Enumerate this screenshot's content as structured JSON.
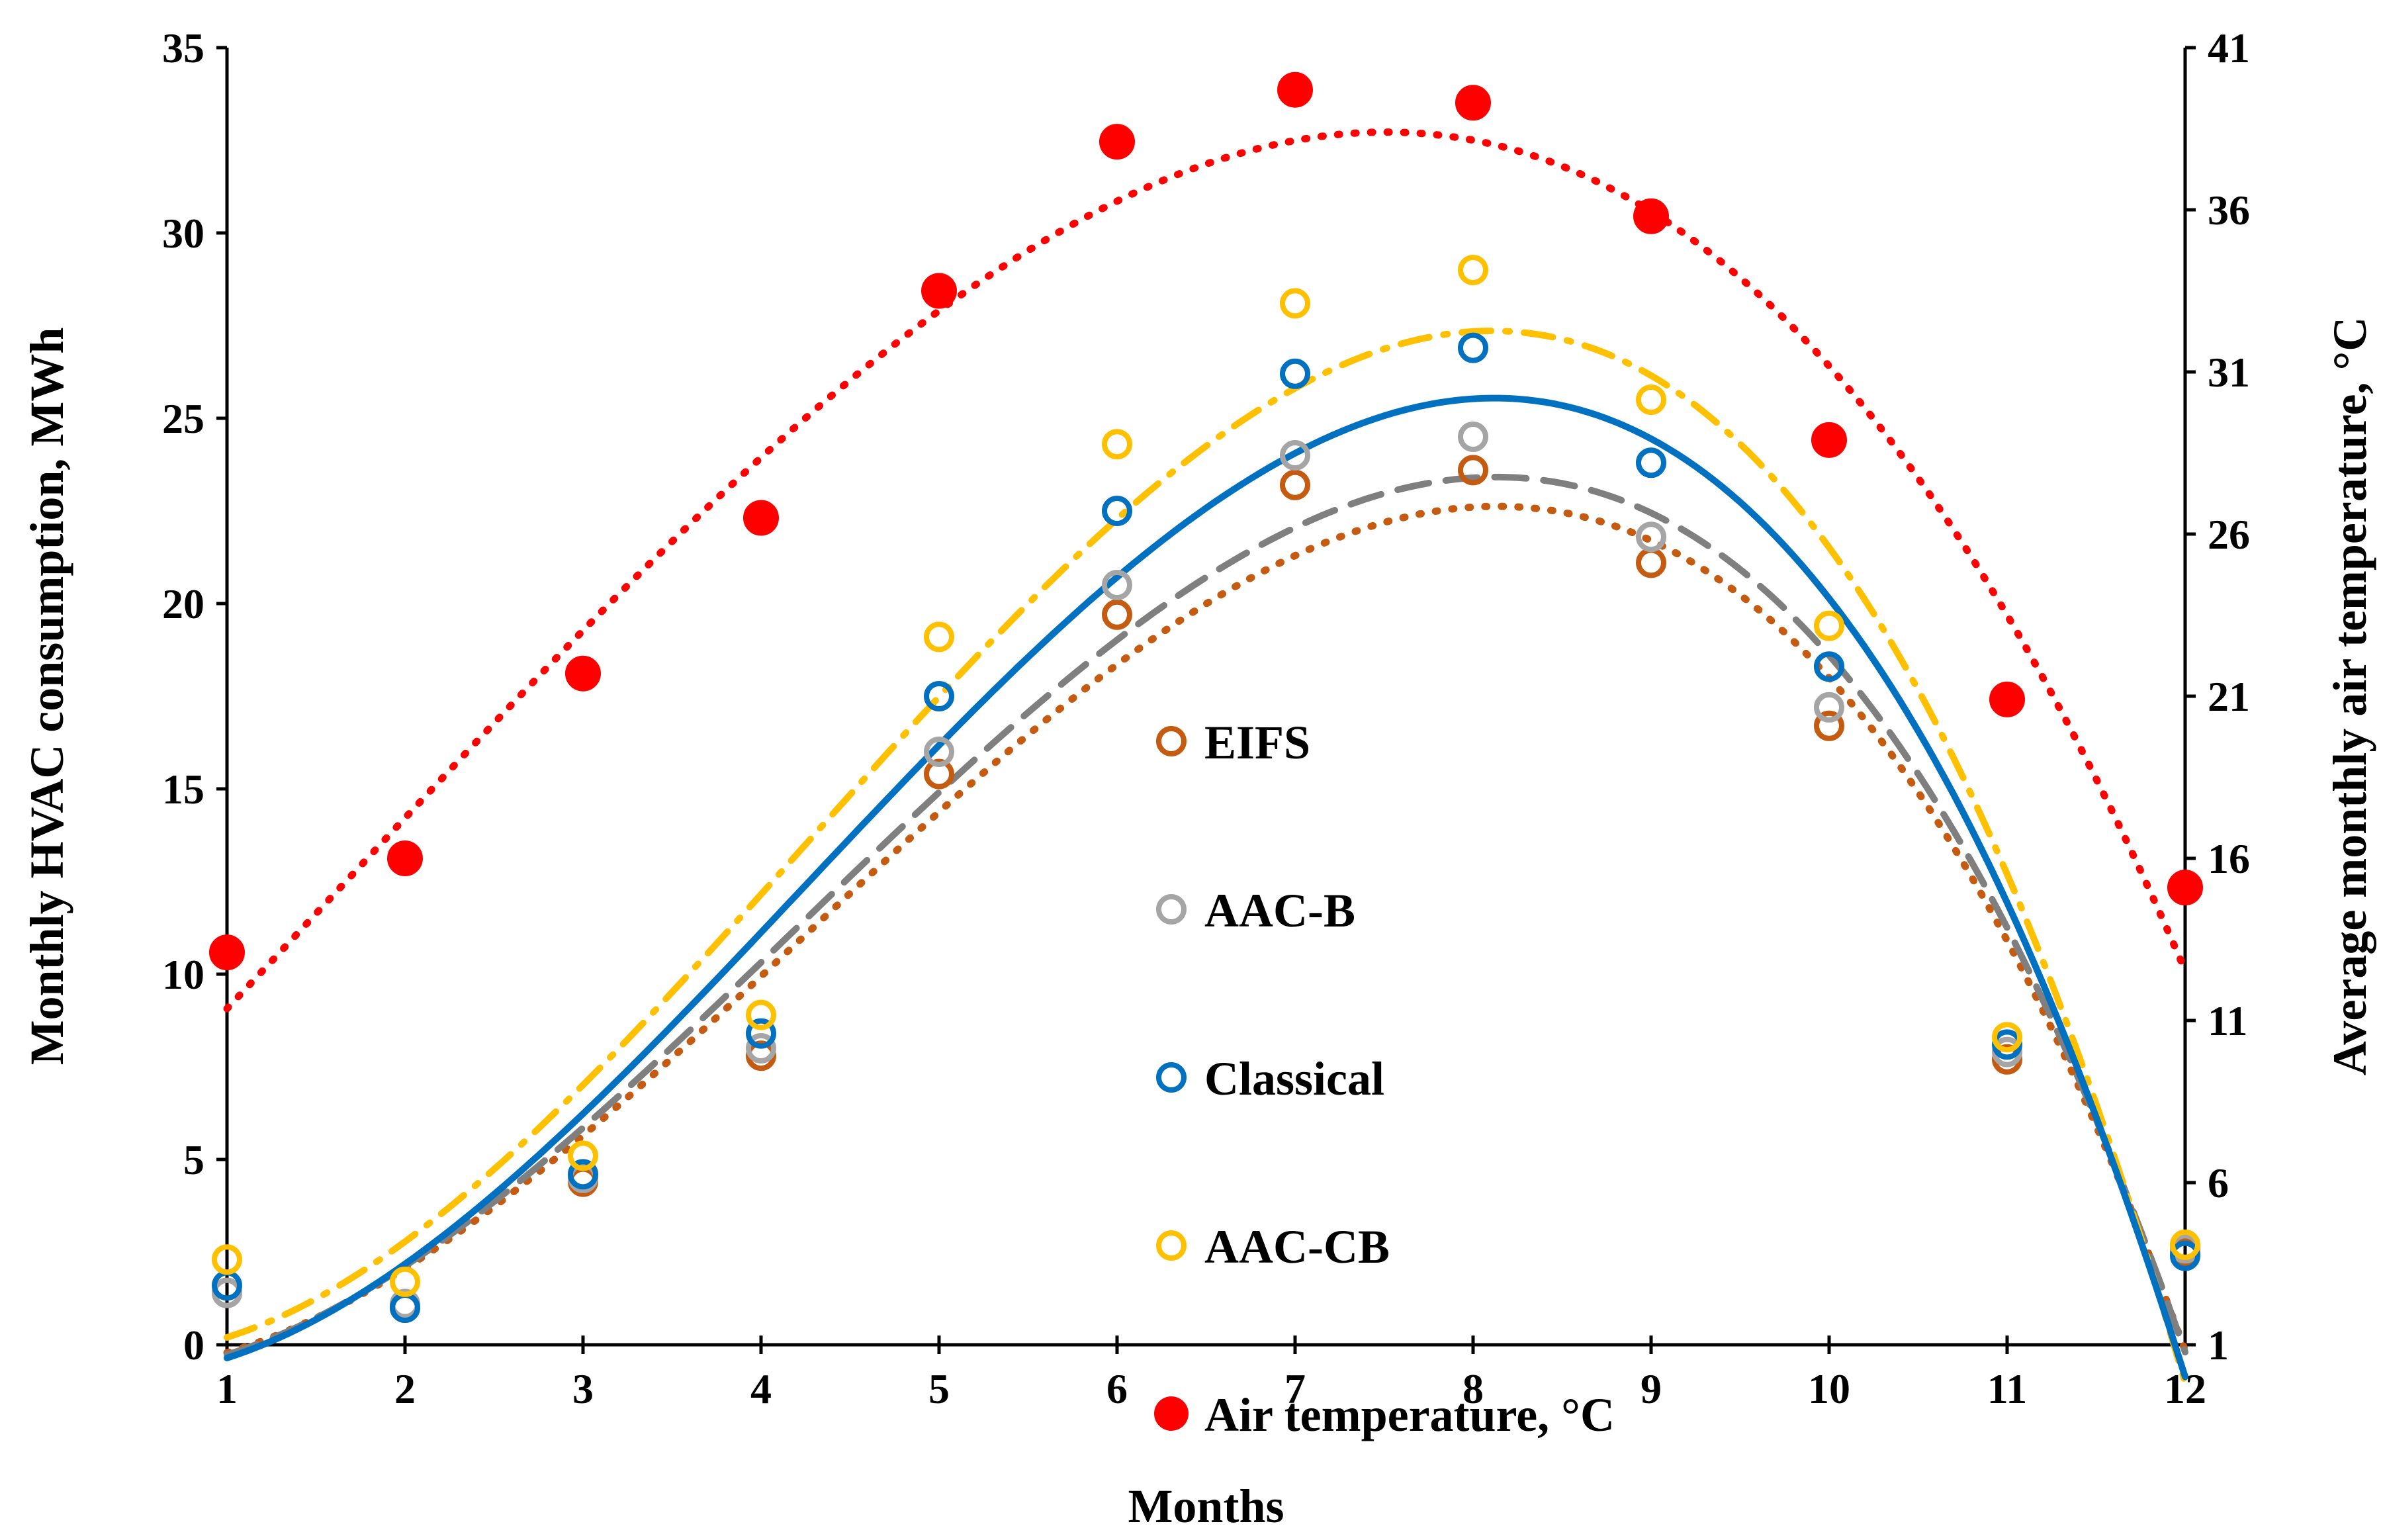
{
  "chart_data": {
    "type": "scatter",
    "xlabel": "Months",
    "ylabel_left": "Monthly  HVAC consumption, MWh",
    "ylabel_right": "Average monthly air temperature, °C",
    "x_ticks": [
      "1",
      "2",
      "3",
      "4",
      "5",
      "6",
      "7",
      "8",
      "9",
      "10",
      "11",
      "12"
    ],
    "y_left_ticks": [
      "0",
      "5",
      "10",
      "15",
      "20",
      "25",
      "30",
      "35"
    ],
    "y_right_ticks": [
      "1",
      "6",
      "11",
      "16",
      "21",
      "26",
      "31",
      "36",
      "41"
    ],
    "xlim": [
      1,
      12
    ],
    "ylim_left": [
      0,
      35
    ],
    "ylim_right": [
      1,
      41
    ],
    "grid": false,
    "legend_position": "center",
    "x": [
      1,
      2,
      3,
      4,
      5,
      6,
      7,
      8,
      9,
      10,
      11,
      12
    ],
    "series": [
      {
        "name": "EIFS",
        "axis": "left",
        "marker": "hollow-circle",
        "trend": "dotted",
        "color": "#C55A11",
        "values": [
          1.4,
          1.0,
          4.4,
          7.8,
          15.4,
          19.7,
          23.2,
          23.6,
          21.1,
          16.7,
          7.7,
          2.5
        ]
      },
      {
        "name": "AAC-B",
        "axis": "left",
        "marker": "hollow-circle",
        "trend": "dashed",
        "color": "#A5A5A5",
        "trend_color": "#7F7F7F",
        "values": [
          1.4,
          1.1,
          4.5,
          8.0,
          16.0,
          20.5,
          24.0,
          24.5,
          21.8,
          17.2,
          7.9,
          2.6
        ]
      },
      {
        "name": "Classical",
        "axis": "left",
        "marker": "hollow-circle",
        "trend": "solid",
        "color": "#0070C0",
        "values": [
          1.6,
          1.0,
          4.6,
          8.4,
          17.5,
          22.5,
          26.2,
          26.9,
          23.8,
          18.3,
          8.1,
          2.4
        ]
      },
      {
        "name": "AAC-CB",
        "axis": "left",
        "marker": "hollow-circle",
        "trend": "dash-dot",
        "color": "#FFC000",
        "values": [
          2.3,
          1.7,
          5.1,
          8.9,
          19.1,
          24.3,
          28.1,
          29.0,
          25.5,
          19.4,
          8.3,
          2.7
        ]
      },
      {
        "name": "Air temperature, °C",
        "axis": "right",
        "marker": "filled-circle",
        "trend": "dotted",
        "color": "#FF0000",
        "values": [
          13.1,
          16.0,
          21.7,
          26.5,
          33.5,
          38.1,
          39.7,
          39.3,
          35.8,
          28.9,
          20.9,
          15.1
        ]
      }
    ]
  }
}
